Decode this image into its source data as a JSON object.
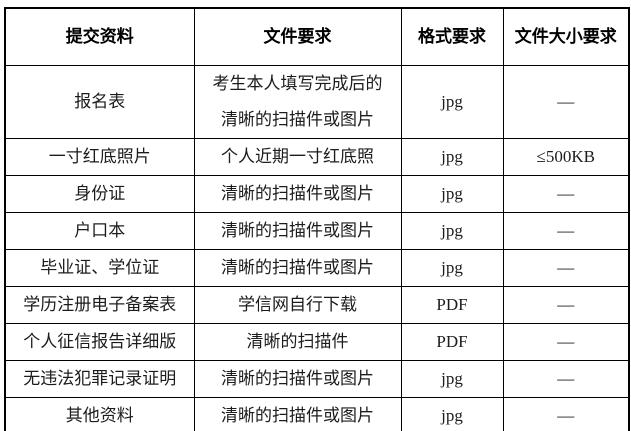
{
  "table": {
    "headers": [
      "提交资料",
      "文件要求",
      "格式要求",
      "文件大小要求"
    ],
    "rows": [
      {
        "material": "报名表",
        "requirement": "考生本人填写完成后的\n清晰的扫描件或图片",
        "format": "jpg",
        "size": "—"
      },
      {
        "material": "一寸红底照片",
        "requirement": "个人近期一寸红底照",
        "format": "jpg",
        "size": "≤500KB"
      },
      {
        "material": "身份证",
        "requirement": "清晰的扫描件或图片",
        "format": "jpg",
        "size": "—"
      },
      {
        "material": "户口本",
        "requirement": "清晰的扫描件或图片",
        "format": "jpg",
        "size": "—"
      },
      {
        "material": "毕业证、学位证",
        "requirement": "清晰的扫描件或图片",
        "format": "jpg",
        "size": "—"
      },
      {
        "material": "学历注册电子备案表",
        "requirement": "学信网自行下载",
        "format": "PDF",
        "size": "—"
      },
      {
        "material": "个人征信报告详细版",
        "requirement": "清晰的扫描件",
        "format": "PDF",
        "size": "—"
      },
      {
        "material": "无违法犯罪记录证明",
        "requirement": "清晰的扫描件或图片",
        "format": "jpg",
        "size": "—"
      },
      {
        "material": "其他资料",
        "requirement": "清晰的扫描件或图片",
        "format": "jpg",
        "size": "—"
      }
    ]
  },
  "colors": {
    "border": "#000000",
    "text": "#1c1c1c",
    "background": "#ffffff"
  }
}
